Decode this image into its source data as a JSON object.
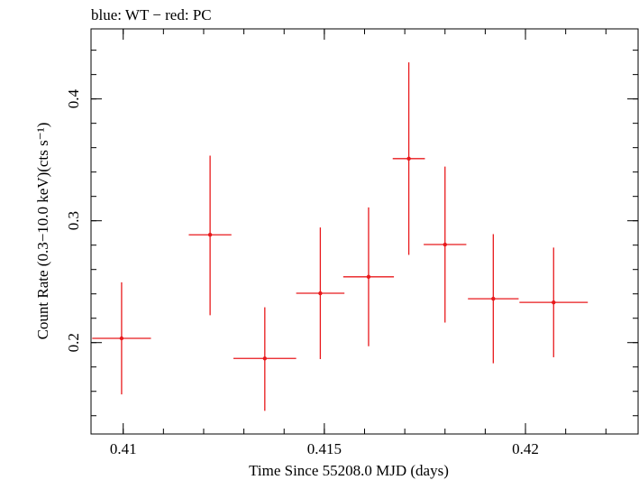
{
  "chart_data": {
    "type": "scatter",
    "title": "blue: WT − red: PC",
    "xlabel": "Time Since 55208.0 MJD (days)",
    "ylabel": "Count Rate (0.3−10.0 keV)(cts s⁻¹)",
    "xlim": [
      0.4092,
      0.4228
    ],
    "ylim": [
      0.125,
      0.4575
    ],
    "x_ticks": [
      {
        "value": 0.41,
        "label": "0.41"
      },
      {
        "value": 0.415,
        "label": "0.415"
      },
      {
        "value": 0.42,
        "label": "0.42"
      }
    ],
    "y_ticks": [
      {
        "value": 0.2,
        "label": "0.2"
      },
      {
        "value": 0.3,
        "label": "0.3"
      },
      {
        "value": 0.4,
        "label": "0.4"
      }
    ],
    "x_minor_step": 0.001,
    "y_minor_step": 0.02,
    "grid": false,
    "series": [
      {
        "color": "#e8191c",
        "points": [
          {
            "x": 0.40996,
            "xerr": 0.00073,
            "y": 0.2035,
            "yerr_low": 0.046,
            "yerr_high": 0.046
          },
          {
            "x": 0.41216,
            "xerr": 0.00053,
            "y": 0.2885,
            "yerr_low": 0.066,
            "yerr_high": 0.065
          },
          {
            "x": 0.41352,
            "xerr": 0.00078,
            "y": 0.187,
            "yerr_low": 0.043,
            "yerr_high": 0.042
          },
          {
            "x": 0.4149,
            "xerr": 0.0006,
            "y": 0.2405,
            "yerr_low": 0.054,
            "yerr_high": 0.054
          },
          {
            "x": 0.4161,
            "xerr": 0.00063,
            "y": 0.254,
            "yerr_low": 0.057,
            "yerr_high": 0.057
          },
          {
            "x": 0.4171,
            "xerr": 0.0004,
            "y": 0.351,
            "yerr_low": 0.079,
            "yerr_high": 0.079
          },
          {
            "x": 0.418,
            "xerr": 0.00053,
            "y": 0.2805,
            "yerr_low": 0.064,
            "yerr_high": 0.064
          },
          {
            "x": 0.4192,
            "xerr": 0.00063,
            "y": 0.236,
            "yerr_low": 0.053,
            "yerr_high": 0.053
          },
          {
            "x": 0.4207,
            "xerr": 0.00085,
            "y": 0.233,
            "yerr_low": 0.045,
            "yerr_high": 0.045
          }
        ]
      }
    ]
  }
}
